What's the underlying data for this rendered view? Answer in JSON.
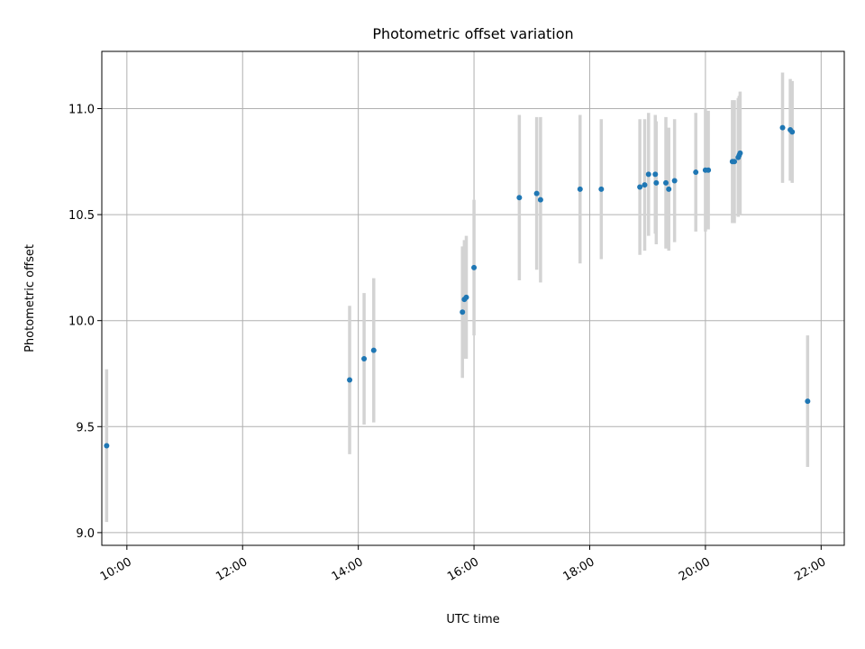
{
  "chart_data": {
    "type": "scatter",
    "title": "Photometric offset variation",
    "xlabel": "UTC time",
    "ylabel": "Photometric offset",
    "x_unit": "hours UTC",
    "xlim": [
      "09:34",
      "22:24"
    ],
    "ylim": [
      8.94,
      11.27
    ],
    "x_ticks": [
      "10:00",
      "12:00",
      "14:00",
      "16:00",
      "18:00",
      "20:00",
      "22:00"
    ],
    "y_ticks": [
      "9.0",
      "9.5",
      "10.0",
      "10.5",
      "11.0"
    ],
    "grid": true,
    "legend": "none",
    "point_color": "#1f77b4",
    "errorbar_color": "#d3d3d3",
    "points": [
      {
        "x": "09:39",
        "y": 9.41,
        "err": 0.36
      },
      {
        "x": "13:51",
        "y": 9.72,
        "err": 0.35
      },
      {
        "x": "14:06",
        "y": 9.82,
        "err": 0.31
      },
      {
        "x": "14:16",
        "y": 9.86,
        "err": 0.34
      },
      {
        "x": "15:48",
        "y": 10.04,
        "err": 0.31
      },
      {
        "x": "15:50",
        "y": 10.1,
        "err": 0.28
      },
      {
        "x": "15:52",
        "y": 10.11,
        "err": 0.29
      },
      {
        "x": "16:00",
        "y": 10.25,
        "err": 0.32
      },
      {
        "x": "16:47",
        "y": 10.58,
        "err": 0.39
      },
      {
        "x": "17:05",
        "y": 10.6,
        "err": 0.36
      },
      {
        "x": "17:09",
        "y": 10.57,
        "err": 0.39
      },
      {
        "x": "17:50",
        "y": 10.62,
        "err": 0.35
      },
      {
        "x": "18:12",
        "y": 10.62,
        "err": 0.33
      },
      {
        "x": "18:52",
        "y": 10.63,
        "err": 0.32
      },
      {
        "x": "18:57",
        "y": 10.64,
        "err": 0.31
      },
      {
        "x": "19:01",
        "y": 10.69,
        "err": 0.29
      },
      {
        "x": "19:08",
        "y": 10.69,
        "err": 0.28
      },
      {
        "x": "19:09",
        "y": 10.65,
        "err": 0.29
      },
      {
        "x": "19:19",
        "y": 10.65,
        "err": 0.31
      },
      {
        "x": "19:22",
        "y": 10.62,
        "err": 0.29
      },
      {
        "x": "19:28",
        "y": 10.66,
        "err": 0.29
      },
      {
        "x": "19:50",
        "y": 10.7,
        "err": 0.28
      },
      {
        "x": "20:00",
        "y": 10.71,
        "err": 0.29
      },
      {
        "x": "20:03",
        "y": 10.71,
        "err": 0.28
      },
      {
        "x": "20:28",
        "y": 10.75,
        "err": 0.29
      },
      {
        "x": "20:30",
        "y": 10.75,
        "err": 0.29
      },
      {
        "x": "20:34",
        "y": 10.77,
        "err": 0.28
      },
      {
        "x": "20:35",
        "y": 10.78,
        "err": 0.28
      },
      {
        "x": "20:36",
        "y": 10.79,
        "err": 0.29
      },
      {
        "x": "21:20",
        "y": 10.91,
        "err": 0.26
      },
      {
        "x": "21:28",
        "y": 10.9,
        "err": 0.24
      },
      {
        "x": "21:30",
        "y": 10.89,
        "err": 0.24
      },
      {
        "x": "21:46",
        "y": 9.62,
        "err": 0.31
      }
    ]
  }
}
